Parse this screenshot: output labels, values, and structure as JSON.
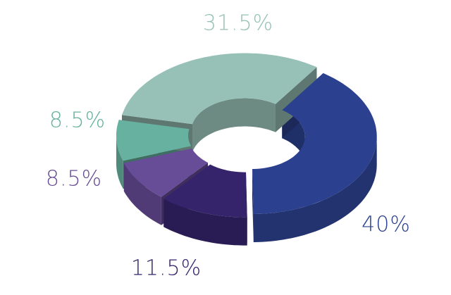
{
  "chart_data": {
    "type": "donut3d",
    "categories": [
      null,
      null,
      null,
      null,
      null
    ],
    "values": [
      40,
      11.5,
      8.5,
      8.5,
      31.5
    ],
    "value_labels": [
      "40%",
      "11.5%",
      "8.5%",
      "8.5%",
      "31.5%"
    ],
    "colors": [
      "#2b4190",
      "#35246c",
      "#674c97",
      "#66b19f",
      "#97c1b6"
    ]
  }
}
